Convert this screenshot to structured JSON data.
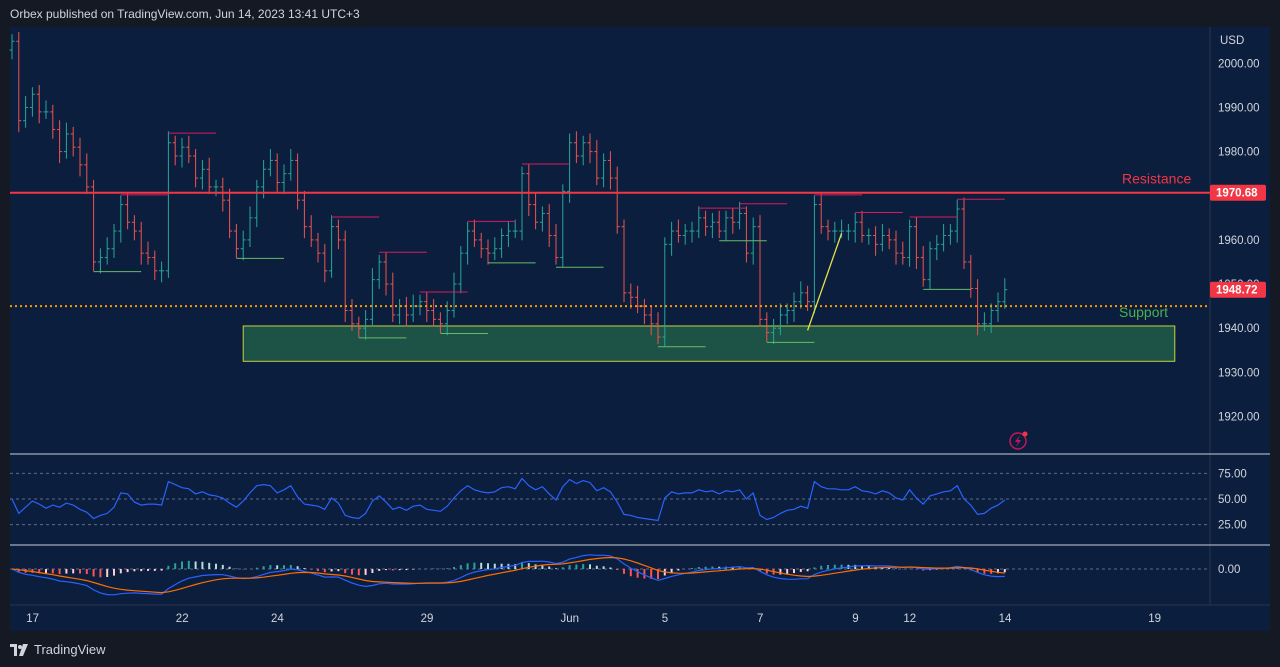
{
  "header": {
    "published": "Orbex published on TradingView.com, Jun 14, 2023 13:41 UTC+3"
  },
  "footer": {
    "brand": "TradingView"
  },
  "colors": {
    "bg": "#0b1e3d",
    "up": "#26a69a",
    "down": "#ef5350",
    "resistance": "#f23645",
    "support_zone": "#2e7d4f",
    "rsi": "#2962ff",
    "macd": "#2962ff",
    "signal": "#ff6d00"
  },
  "chart_data": [
    {
      "type": "ohlc",
      "currency": "USD",
      "y_ticks": [
        2000,
        1990,
        1980,
        1970,
        1960,
        1950,
        1940,
        1930,
        1920
      ],
      "y_tick_labels": [
        "2000.00",
        "1990.00",
        "1980.00",
        "1970.00",
        "1960.00",
        "1950.00",
        "1940.00",
        "1930.00",
        "1920.00"
      ],
      "ylim": [
        1911.5,
        2008
      ],
      "x_ticks": [
        {
          "label": "17",
          "bar": 2
        },
        {
          "label": "22",
          "bar": 24
        },
        {
          "label": "24",
          "bar": 38
        },
        {
          "label": "29",
          "bar": 60
        },
        {
          "label": "Jun",
          "bar": 81
        },
        {
          "label": "5",
          "bar": 95
        },
        {
          "label": "7",
          "bar": 109
        },
        {
          "label": "9",
          "bar": 123
        },
        {
          "label": "12",
          "bar": 131
        },
        {
          "label": "14",
          "bar": 145
        },
        {
          "label": "19",
          "bar": 167
        }
      ],
      "resistance": {
        "value": 1970.68,
        "label": "Resistance",
        "price_tag": "1970.68"
      },
      "support": {
        "value": 1945,
        "label": "Support"
      },
      "support_zone": {
        "low": 1932.5,
        "high": 1940.5,
        "start_bar": 34,
        "end_bar": 171
      },
      "last_price": {
        "value": 1948.72,
        "label": "1948.72"
      },
      "trendline": {
        "from": {
          "bar": 117,
          "value": 1939.5
        },
        "to": {
          "bar": 122,
          "value": 1961.5
        }
      },
      "closes": [
        2005,
        1987,
        1990,
        1993,
        1989,
        1989,
        1985,
        1980,
        1984,
        1981,
        1977,
        1972,
        1955,
        1956,
        1958,
        1962,
        1968,
        1964,
        1962,
        1957,
        1956,
        1953,
        1953,
        1982,
        1979,
        1981,
        1979,
        1974,
        1976,
        1972,
        1972,
        1969,
        1962,
        1958,
        1960,
        1965,
        1972,
        1976,
        1978,
        1973,
        1975,
        1978,
        1969,
        1963,
        1960,
        1957,
        1953,
        1963,
        1960,
        1944,
        1941,
        1940,
        1942,
        1951,
        1955,
        1950,
        1943,
        1945,
        1943,
        1945,
        1946,
        1944,
        1942,
        1941,
        1944,
        1950,
        1957,
        1962,
        1960,
        1958,
        1957,
        1958,
        1961,
        1962,
        1962,
        1975,
        1968,
        1964,
        1966,
        1961,
        1956,
        1971,
        1982,
        1979,
        1982,
        1980,
        1974,
        1978,
        1974,
        1963,
        1948,
        1947,
        1945,
        1943,
        1941,
        1938,
        1959,
        1962,
        1961,
        1962,
        1962,
        1965,
        1963,
        1964,
        1962,
        1965,
        1964,
        1966,
        1957,
        1963,
        1942,
        1939,
        1940,
        1943,
        1944,
        1946,
        1948,
        1946,
        1968,
        1963,
        1962,
        1962,
        1962,
        1962,
        1964,
        1961,
        1961,
        1959,
        1961,
        1960,
        1957,
        1956,
        1963,
        1956,
        1951,
        1958,
        1959,
        1961,
        1962,
        1967,
        1955,
        1949,
        1941,
        1941,
        1944,
        1946,
        1948.72
      ],
      "series": [
        {
          "name": "RSI",
          "y_ticks": [
            75,
            50,
            25
          ],
          "y_tick_labels": [
            "75.00",
            "50.00",
            "25.00"
          ],
          "values": [
            50,
            36,
            42,
            48,
            45,
            41,
            44,
            42,
            46,
            44,
            40,
            37,
            31,
            34,
            36,
            42,
            56,
            55,
            47,
            44,
            45,
            45,
            44,
            67,
            64,
            61,
            60,
            55,
            57,
            54,
            53,
            51,
            46,
            42,
            48,
            56,
            63,
            64,
            63,
            56,
            59,
            63,
            52,
            45,
            44,
            43,
            40,
            51,
            46,
            34,
            32,
            31,
            36,
            48,
            53,
            47,
            40,
            42,
            39,
            43,
            44,
            40,
            39,
            38,
            43,
            51,
            58,
            63,
            59,
            57,
            56,
            57,
            61,
            62,
            60,
            70,
            63,
            59,
            62,
            55,
            49,
            62,
            69,
            65,
            68,
            66,
            58,
            61,
            57,
            47,
            35,
            34,
            32,
            31,
            30,
            29,
            51,
            57,
            55,
            56,
            56,
            59,
            57,
            58,
            55,
            58,
            57,
            59,
            50,
            56,
            34,
            30,
            32,
            36,
            39,
            40,
            43,
            41,
            67,
            62,
            60,
            60,
            59,
            59,
            62,
            58,
            57,
            55,
            58,
            56,
            51,
            49,
            59,
            51,
            45,
            53,
            55,
            57,
            58,
            63,
            50,
            44,
            35,
            36,
            41,
            44,
            49
          ]
        },
        {
          "name": "MACD",
          "y_ticks": [
            0
          ],
          "y_tick_labels": [
            "0.00"
          ]
        }
      ]
    }
  ]
}
